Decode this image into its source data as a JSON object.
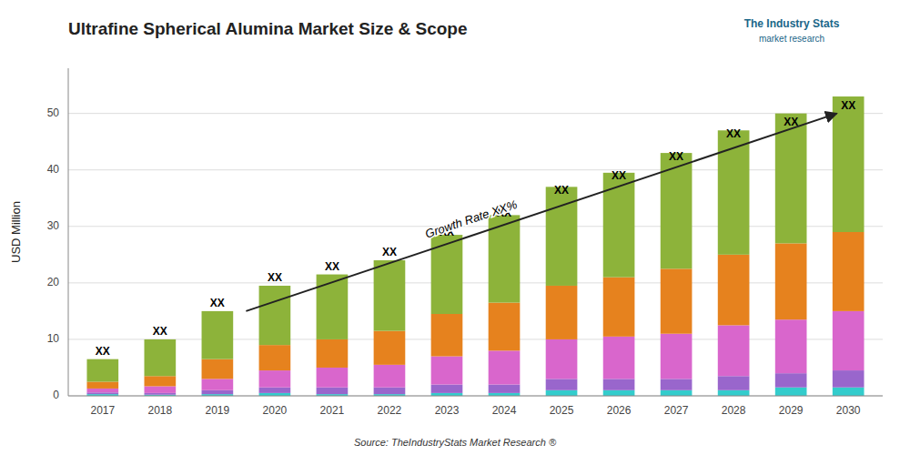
{
  "chart_data": {
    "type": "bar",
    "stacked": true,
    "title": "Ultrafine Spherical Alumina Market Size & Scope",
    "y_label": "USD Million",
    "source": "Source: TheIndustryStats Market Research ®",
    "categories": [
      "2017",
      "2018",
      "2019",
      "2020",
      "2021",
      "2022",
      "2023",
      "2024",
      "2025",
      "2026",
      "2027",
      "2028",
      "2029",
      "2030"
    ],
    "series": [
      {
        "color": "#33cccc",
        "values": [
          0.3,
          0.2,
          0.3,
          0.5,
          0.3,
          0.3,
          0.5,
          0.5,
          1.0,
          1.0,
          1.0,
          1.0,
          1.5,
          1.5
        ]
      },
      {
        "color": "#9966cc",
        "values": [
          0.3,
          0.3,
          0.7,
          1.0,
          1.2,
          1.2,
          1.5,
          1.5,
          2.0,
          2.0,
          2.0,
          2.5,
          2.5,
          3.0
        ]
      },
      {
        "color": "#d966cc",
        "values": [
          0.7,
          1.2,
          2.0,
          3.0,
          3.5,
          4.0,
          5.0,
          6.0,
          7.0,
          7.5,
          8.0,
          9.0,
          9.5,
          10.5
        ]
      },
      {
        "color": "#e6821e",
        "values": [
          1.2,
          1.8,
          3.5,
          4.5,
          5.0,
          6.0,
          7.5,
          8.5,
          9.5,
          10.5,
          11.5,
          12.5,
          13.5,
          14.0
        ]
      },
      {
        "color": "#8db33a",
        "values": [
          4.0,
          6.5,
          8.5,
          10.5,
          11.5,
          12.5,
          14.0,
          15.5,
          17.5,
          18.5,
          20.5,
          22.0,
          23.0,
          24.0
        ]
      }
    ],
    "ylim": [
      0,
      58
    ],
    "yticks": [
      0,
      10,
      20,
      30,
      40,
      50
    ],
    "grid": true,
    "annotations": [
      {
        "text": "XX",
        "x": "2017",
        "y": 6.5
      },
      {
        "text": "XX",
        "x": "2018",
        "y": 10.0
      },
      {
        "text": "XX",
        "x": "2019",
        "y": 15.0
      },
      {
        "text": "XX",
        "x": "2020",
        "y": 19.5
      },
      {
        "text": "XX",
        "x": "2021",
        "y": 21.5
      },
      {
        "text": "XX",
        "x": "2022",
        "y": 24.0
      },
      {
        "text": "XX",
        "x": "2023",
        "y": 27.5
      },
      {
        "text": "XX",
        "x": "2024",
        "y": 31.0
      },
      {
        "text": "XX",
        "x": "2025",
        "y": 35.0
      },
      {
        "text": "XX",
        "x": "2026",
        "y": 37.5
      },
      {
        "text": "XX",
        "x": "2027",
        "y": 41.0
      },
      {
        "text": "XX",
        "x": "2028",
        "y": 45.0
      },
      {
        "text": "XX",
        "x": "2029",
        "y": 47.0
      },
      {
        "text": "XX",
        "x": "2030",
        "y": 50.0
      },
      {
        "type": "arrow",
        "from": [
          2019.5,
          15
        ],
        "to": [
          2029.8,
          50
        ]
      },
      {
        "text": "Growth Rate XX%",
        "x": 2023.5,
        "y": 29
      },
      {
        "text": "The Industry Stats"
      },
      {
        "text": "market research"
      }
    ]
  }
}
